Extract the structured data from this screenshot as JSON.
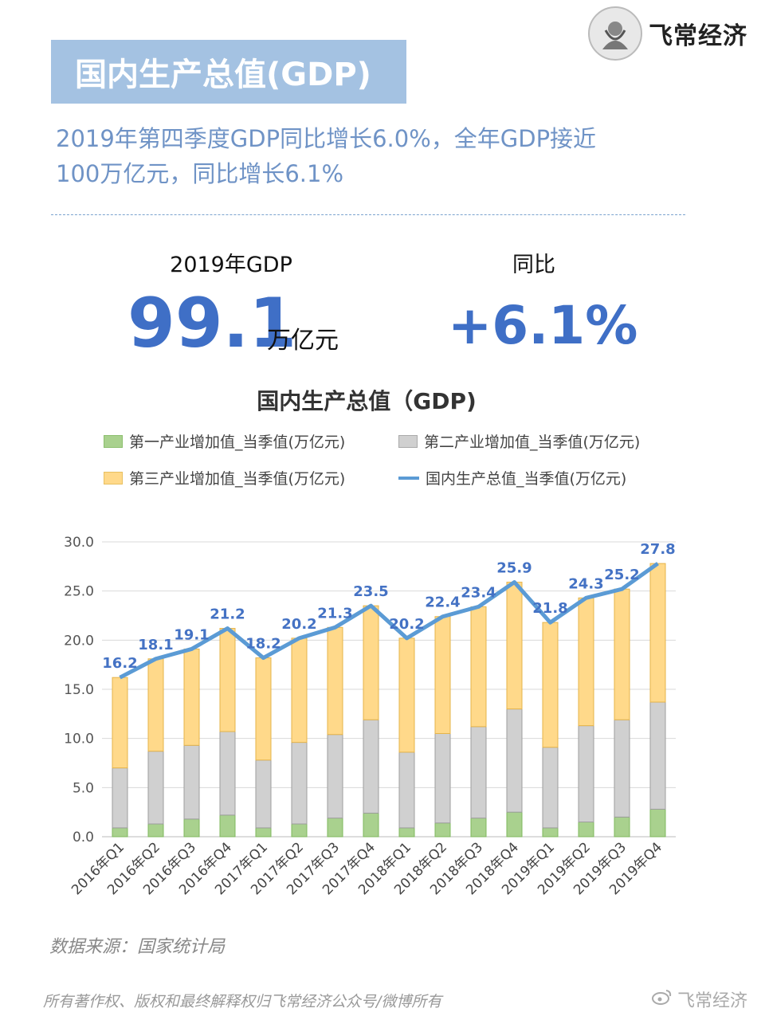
{
  "brand": {
    "name": "飞常经济",
    "logo_icon": "portrait-logo-icon",
    "weibo_icon": "weibo-icon"
  },
  "header": {
    "title": "国内生产总值(GDP)",
    "subtitle_line1": "2019年第四季度GDP同比增长6.0%，全年GDP接近",
    "subtitle_line2": "100万亿元，同比增长6.1%"
  },
  "kpis": {
    "gdp_label": "2019年GDP",
    "gdp_value": "99.1",
    "gdp_unit": "万亿元",
    "yoy_label": "同比",
    "yoy_value": "+6.1%"
  },
  "chart_data": {
    "type": "bar",
    "stacked": true,
    "title": "国内生产总值（GDP)",
    "categories": [
      "2016年Q1",
      "2016年Q2",
      "2016年Q3",
      "2016年Q4",
      "2017年Q1",
      "2017年Q2",
      "2017年Q3",
      "2017年Q4",
      "2018年Q1",
      "2018年Q2",
      "2018年Q3",
      "2018年Q4",
      "2019年Q1",
      "2019年Q2",
      "2019年Q3",
      "2019年Q4"
    ],
    "series": [
      {
        "name": "第一产业增加值_当季值(万亿元)",
        "type": "bar",
        "color": "#a9d18e",
        "values": [
          0.9,
          1.3,
          1.8,
          2.2,
          0.9,
          1.3,
          1.9,
          2.4,
          0.9,
          1.4,
          1.9,
          2.5,
          0.9,
          1.5,
          2.0,
          2.8
        ]
      },
      {
        "name": "第二产业增加值_当季值(万亿元)",
        "type": "bar",
        "color": "#d0d0d0",
        "values": [
          6.1,
          7.4,
          7.5,
          8.5,
          6.9,
          8.3,
          8.5,
          9.5,
          7.7,
          9.1,
          9.3,
          10.5,
          8.2,
          9.8,
          9.9,
          10.9
        ]
      },
      {
        "name": "第三产业增加值_当季值(万亿元)",
        "type": "bar",
        "color": "#ffd98a",
        "values": [
          9.2,
          9.4,
          9.8,
          10.5,
          10.4,
          10.6,
          10.9,
          11.6,
          11.6,
          11.9,
          12.2,
          12.9,
          12.7,
          13.0,
          13.3,
          14.1
        ]
      },
      {
        "name": "国内生产总值_当季值(万亿元)",
        "type": "line",
        "color": "#5b9bd5",
        "values": [
          16.2,
          18.1,
          19.1,
          21.2,
          18.2,
          20.2,
          21.3,
          23.5,
          20.2,
          22.4,
          23.4,
          25.9,
          21.8,
          24.3,
          25.2,
          27.8
        ],
        "labels": [
          "16.2",
          "18.1",
          "19.1",
          "21.2",
          "18.2",
          "20.2",
          "21.3",
          "23.5",
          "20.2",
          "22.4",
          "23.4",
          "25.9",
          "21.8",
          "24.3",
          "25.2",
          "27.8"
        ]
      }
    ],
    "ylim": [
      0,
      30
    ],
    "yticks": [
      "0.0",
      "5.0",
      "10.0",
      "15.0",
      "20.0",
      "25.0",
      "30.0"
    ],
    "grid": true,
    "legend_position": "top"
  },
  "source": "数据来源：国家统计局",
  "footer": {
    "copyright": "所有著作权、版权和最终解释权归飞常经济公众号/微博所有",
    "brand": "飞常经济"
  }
}
